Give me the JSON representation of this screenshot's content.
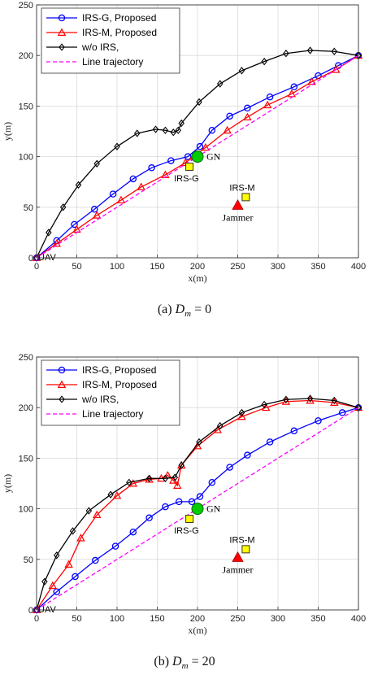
{
  "chart_data": [
    {
      "type": "line",
      "caption": "(a)  D_m = 0",
      "caption_prefix": "(a)",
      "caption_var": "D",
      "caption_sub": "m",
      "caption_rest": "= 0",
      "xlabel": "x(m)",
      "ylabel": "y(m)",
      "xlim": [
        0,
        400
      ],
      "ylim": [
        0,
        250
      ],
      "xticks": [
        0,
        50,
        100,
        150,
        200,
        250,
        300,
        350,
        400
      ],
      "yticks": [
        0,
        50,
        100,
        150,
        200,
        250
      ],
      "grid": true,
      "legend_position": "top-left",
      "series": [
        {
          "name": "IRS-G, Proposed",
          "color": "#0000ff",
          "marker": "circle",
          "x": [
            0,
            25,
            47,
            72,
            95,
            120,
            143,
            167,
            188,
            203,
            218,
            240,
            262,
            290,
            320,
            350,
            375,
            400
          ],
          "y": [
            0,
            17,
            33,
            48,
            63,
            78,
            89,
            96,
            100,
            110,
            126,
            140,
            148,
            159,
            169,
            180,
            190,
            200
          ]
        },
        {
          "name": "IRS-M, Proposed",
          "color": "#ff0000",
          "marker": "triangle",
          "x": [
            0,
            25,
            50,
            75,
            105,
            130,
            160,
            185,
            195,
            210,
            237,
            262,
            287,
            317,
            342,
            372,
            400
          ],
          "y": [
            0,
            14,
            28,
            42,
            57,
            70,
            82,
            94,
            100,
            109,
            126,
            139,
            151,
            162,
            174,
            186,
            200
          ]
        },
        {
          "name": "w/o IRS,",
          "color": "#000000",
          "marker": "diamond",
          "x": [
            0,
            15,
            33,
            52,
            75,
            100,
            125,
            148,
            160,
            170,
            176,
            180,
            202,
            228,
            255,
            283,
            310,
            340,
            370,
            400
          ],
          "y": [
            0,
            25,
            50,
            72,
            93,
            110,
            123,
            127,
            126,
            124,
            126,
            133,
            154,
            172,
            185,
            194,
            202,
            205,
            204,
            200
          ]
        },
        {
          "name": "Line trajectory",
          "color": "#ff00ff",
          "marker": "none",
          "dashed": true,
          "x": [
            0,
            400
          ],
          "y": [
            0,
            200
          ]
        }
      ],
      "annotations": [
        {
          "text": "UAV",
          "x": 0,
          "y": 0,
          "shape": "none"
        },
        {
          "text": "GN",
          "x": 200,
          "y": 100,
          "shape": "circle",
          "color": "#00cc00"
        },
        {
          "text": "IRS-G",
          "x": 190,
          "y": 90,
          "shape": "square",
          "color": "#ffff00"
        },
        {
          "text": "IRS-M",
          "x": 260,
          "y": 60,
          "shape": "square",
          "color": "#ffff00"
        },
        {
          "text": "Jammer",
          "x": 250,
          "y": 52,
          "shape": "triangle",
          "color": "#ff0000"
        }
      ]
    },
    {
      "type": "line",
      "caption": "(b)  D_m = 20",
      "caption_prefix": "(b)",
      "caption_var": "D",
      "caption_sub": "m",
      "caption_rest": "= 20",
      "xlabel": "x(m)",
      "ylabel": "y(m)",
      "xlim": [
        0,
        400
      ],
      "ylim": [
        0,
        250
      ],
      "xticks": [
        0,
        50,
        100,
        150,
        200,
        250,
        300,
        350,
        400
      ],
      "yticks": [
        0,
        50,
        100,
        150,
        200,
        250
      ],
      "grid": true,
      "legend_position": "top-left",
      "series": [
        {
          "name": "IRS-G, Proposed",
          "color": "#0000ff",
          "marker": "circle",
          "x": [
            0,
            25,
            48,
            73,
            98,
            120,
            140,
            160,
            177,
            193,
            203,
            218,
            240,
            262,
            290,
            320,
            350,
            380,
            400
          ],
          "y": [
            0,
            18,
            33,
            49,
            63,
            77,
            91,
            102,
            107,
            107,
            112,
            126,
            141,
            153,
            166,
            177,
            187,
            195,
            200
          ]
        },
        {
          "name": "IRS-M, Proposed",
          "color": "#ff0000",
          "marker": "triangle",
          "x": [
            0,
            20,
            40,
            55,
            75,
            100,
            120,
            140,
            155,
            163,
            170,
            175,
            180,
            200,
            225,
            255,
            285,
            310,
            340,
            370,
            400
          ],
          "y": [
            0,
            24,
            45,
            71,
            94,
            113,
            125,
            129,
            130,
            133,
            128,
            123,
            143,
            162,
            178,
            191,
            200,
            206,
            207,
            205,
            200
          ]
        },
        {
          "name": "w/o IRS,",
          "color": "#000000",
          "marker": "diamond",
          "x": [
            0,
            10,
            25,
            45,
            65,
            92,
            115,
            140,
            160,
            172,
            180,
            202,
            228,
            255,
            283,
            310,
            340,
            370,
            400
          ],
          "y": [
            0,
            28,
            54,
            78,
            98,
            114,
            126,
            130,
            130,
            131,
            143,
            166,
            182,
            195,
            203,
            208,
            209,
            207,
            200
          ]
        },
        {
          "name": "Line trajectory",
          "color": "#ff00ff",
          "marker": "none",
          "dashed": true,
          "x": [
            0,
            400
          ],
          "y": [
            0,
            200
          ]
        }
      ],
      "annotations": [
        {
          "text": "UAV",
          "x": 0,
          "y": 0,
          "shape": "none"
        },
        {
          "text": "GN",
          "x": 200,
          "y": 100,
          "shape": "circle",
          "color": "#00cc00"
        },
        {
          "text": "IRS-G",
          "x": 190,
          "y": 90,
          "shape": "square",
          "color": "#ffff00"
        },
        {
          "text": "IRS-M",
          "x": 260,
          "y": 60,
          "shape": "square",
          "color": "#ffff00"
        },
        {
          "text": "Jammer",
          "x": 250,
          "y": 52,
          "shape": "triangle",
          "color": "#ff0000"
        }
      ]
    }
  ]
}
